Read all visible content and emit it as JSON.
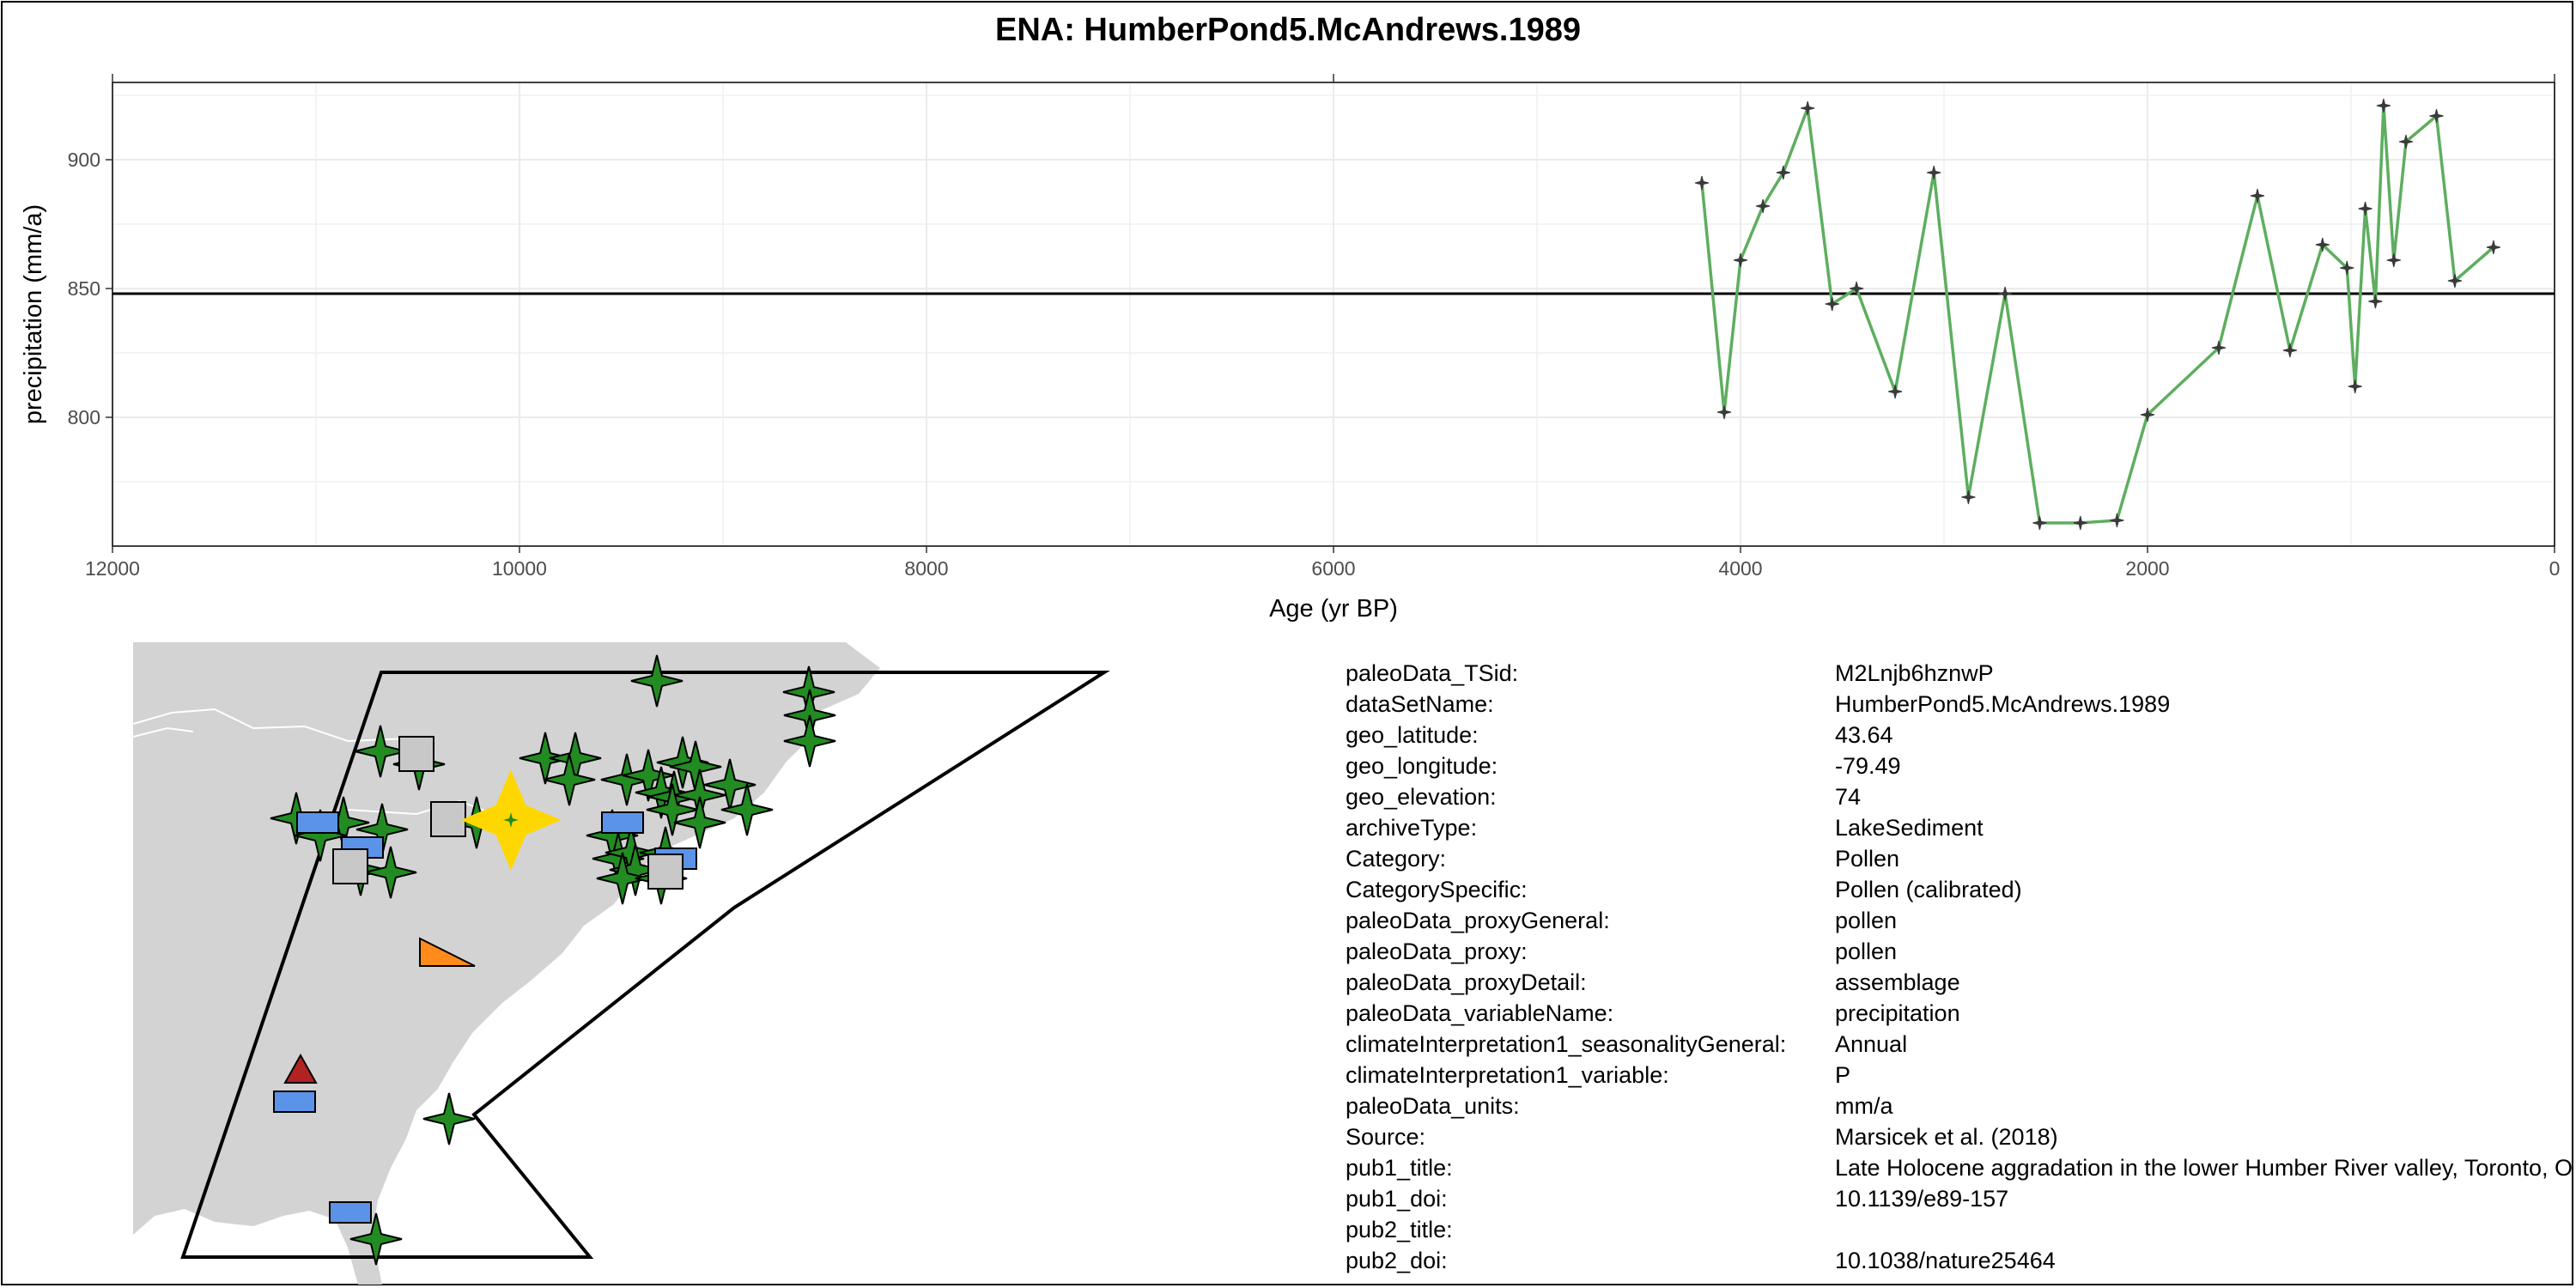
{
  "chart_data": {
    "type": "line",
    "title": "ENA: HumberPond5.McAndrews.1989",
    "xlabel": "Age (yr BP)",
    "ylabel": "precipitation (mm/a)",
    "xlim": [
      12000,
      0
    ],
    "ylim": [
      750,
      930
    ],
    "x_ticks": [
      12000,
      10000,
      8000,
      6000,
      4000,
      2000,
      0
    ],
    "y_ticks": [
      800,
      850,
      900
    ],
    "x_direction": "reversed",
    "grid": true,
    "reference_line": 848,
    "series": [
      {
        "color": "#5DAE5F",
        "marker": "four-point-star",
        "x": [
          4190,
          4080,
          4000,
          3890,
          3790,
          3670,
          3550,
          3430,
          3240,
          3050,
          2880,
          2700,
          2530,
          2330,
          2150,
          2000,
          1650,
          1460,
          1300,
          1140,
          1020,
          980,
          930,
          880,
          840,
          790,
          730,
          580,
          490,
          300
        ],
        "y": [
          891,
          802,
          861,
          882,
          895,
          920,
          844,
          850,
          810,
          895,
          769,
          848,
          759,
          759,
          760,
          801,
          827,
          886,
          826,
          867,
          858,
          812,
          881,
          845,
          921,
          861,
          907,
          917,
          853,
          866
        ]
      }
    ]
  },
  "map": {
    "land_color": "#D3D3D3",
    "ocean_color": "#FFFFFF",
    "target_color": "#FFD700",
    "symbols": [
      {
        "shape": "star",
        "color": "#228B22"
      },
      {
        "shape": "rect",
        "color": "#5B93E8"
      },
      {
        "shape": "square",
        "color": "#C8C8C8"
      },
      {
        "shape": "triangle",
        "color": "#B22222"
      },
      {
        "shape": "wedge",
        "color": "#FF8C1A"
      }
    ]
  },
  "metadata": [
    {
      "key": "paleoData_TSid:",
      "value": "M2Lnjb6hznwP"
    },
    {
      "key": "dataSetName:",
      "value": "HumberPond5.McAndrews.1989"
    },
    {
      "key": "geo_latitude:",
      "value": "43.64"
    },
    {
      "key": "geo_longitude:",
      "value": "-79.49"
    },
    {
      "key": "geo_elevation:",
      "value": "74"
    },
    {
      "key": "archiveType:",
      "value": "LakeSediment"
    },
    {
      "key": "Category:",
      "value": "Pollen"
    },
    {
      "key": "CategorySpecific:",
      "value": "Pollen (calibrated)"
    },
    {
      "key": "paleoData_proxyGeneral:",
      "value": "pollen"
    },
    {
      "key": "paleoData_proxy:",
      "value": "pollen"
    },
    {
      "key": "paleoData_proxyDetail:",
      "value": "assemblage"
    },
    {
      "key": "paleoData_variableName:",
      "value": "precipitation"
    },
    {
      "key": "climateInterpretation1_seasonalityGeneral:",
      "value": "Annual"
    },
    {
      "key": "climateInterpretation1_variable:",
      "value": "P"
    },
    {
      "key": "paleoData_units:",
      "value": "mm/a"
    },
    {
      "key": "Source:",
      "value": "Marsicek et al. (2018)"
    },
    {
      "key": "pub1_title:",
      "value": "Late Holocene aggradation in the lower Humber River valley, Toronto, Ontario"
    },
    {
      "key": "pub1_doi:",
      "value": "10.1139/e89-157"
    },
    {
      "key": "pub2_title:",
      "value": ""
    },
    {
      "key": "pub2_doi:",
      "value": "10.1038/nature25464"
    }
  ]
}
